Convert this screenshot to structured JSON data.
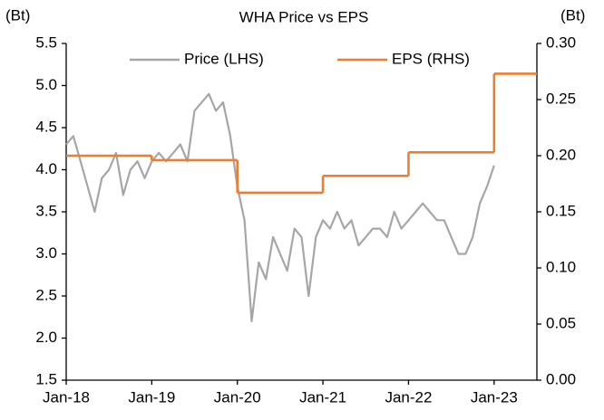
{
  "chart_data": {
    "type": "line",
    "title": "WHA Price vs EPS",
    "y_label": "(Bt)",
    "y2_label": "(Bt)",
    "xlim": [
      2018,
      2023.5
    ],
    "xticks": [
      {
        "value": 2018,
        "label": "Jan-18"
      },
      {
        "value": 2019,
        "label": "Jan-19"
      },
      {
        "value": 2020,
        "label": "Jan-20"
      },
      {
        "value": 2021,
        "label": "Jan-21"
      },
      {
        "value": 2022,
        "label": "Jan-22"
      },
      {
        "value": 2023,
        "label": "Jan-23"
      }
    ],
    "ylim": [
      1.5,
      5.5
    ],
    "yticks": [
      1.5,
      {
        "value": 2,
        "label": "2.0"
      },
      2.5,
      {
        "value": 3,
        "label": "3.0"
      },
      3.5,
      {
        "value": 4,
        "label": "4.0"
      },
      4.5,
      {
        "value": 5,
        "label": "5.0"
      },
      5.5
    ],
    "y2lim": [
      0,
      0.3
    ],
    "y2ticks": [
      {
        "value": 0,
        "label": "0.00"
      },
      0.05,
      {
        "value": 0.1,
        "label": "0.10"
      },
      0.15,
      {
        "value": 0.2,
        "label": "0.20"
      },
      0.25,
      {
        "value": 0.3,
        "label": "0.30"
      }
    ],
    "legend": "top",
    "series": [
      {
        "name": "Price (LHS)",
        "color": "#a6a6a6",
        "style": "line",
        "x": [
          2018,
          2018.083,
          2018.167,
          2018.25,
          2018.333,
          2018.417,
          2018.5,
          2018.583,
          2018.667,
          2018.75,
          2018.833,
          2018.917,
          2019,
          2019.083,
          2019.167,
          2019.25,
          2019.333,
          2019.417,
          2019.5,
          2019.583,
          2019.667,
          2019.75,
          2019.833,
          2019.917,
          2020,
          2020.083,
          2020.167,
          2020.25,
          2020.333,
          2020.417,
          2020.5,
          2020.583,
          2020.667,
          2020.75,
          2020.833,
          2020.917,
          2021,
          2021.083,
          2021.167,
          2021.25,
          2021.333,
          2021.417,
          2021.5,
          2021.583,
          2021.667,
          2021.75,
          2021.833,
          2021.917,
          2022,
          2022.083,
          2022.167,
          2022.25,
          2022.333,
          2022.417,
          2022.5,
          2022.583,
          2022.667,
          2022.75,
          2022.833,
          2022.917,
          2023
        ],
        "values": [
          4.3,
          4.4,
          4.1,
          3.8,
          3.5,
          3.9,
          4.0,
          4.2,
          3.7,
          4.0,
          4.1,
          3.9,
          4.1,
          4.2,
          4.1,
          4.2,
          4.3,
          4.1,
          4.7,
          4.8,
          4.9,
          4.7,
          4.8,
          4.4,
          3.8,
          3.4,
          2.2,
          2.9,
          2.7,
          3.2,
          3.0,
          2.8,
          3.3,
          3.2,
          2.5,
          3.2,
          3.4,
          3.3,
          3.5,
          3.3,
          3.4,
          3.1,
          3.2,
          3.3,
          3.3,
          3.2,
          3.5,
          3.3,
          3.4,
          3.5,
          3.6,
          3.5,
          3.4,
          3.4,
          3.2,
          3.0,
          3.0,
          3.2,
          3.6,
          3.8,
          4.05
        ]
      },
      {
        "name": "EPS (RHS)",
        "color": "#ed7d31",
        "style": "step",
        "axis": "y2",
        "x": [
          2018,
          2019,
          2020,
          2021,
          2022,
          2023
        ],
        "values": [
          0.2,
          0.196,
          0.167,
          0.182,
          0.203,
          0.273
        ]
      }
    ]
  }
}
